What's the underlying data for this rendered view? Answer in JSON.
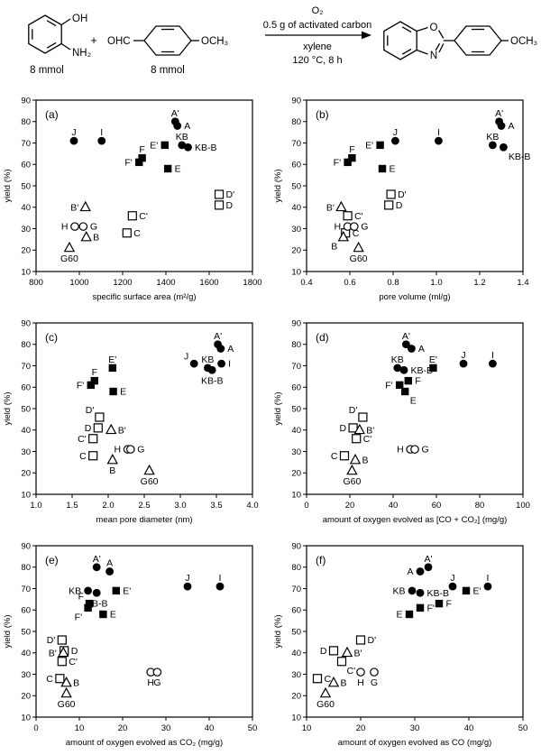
{
  "scheme": {
    "reactant1": {
      "oh": "OH",
      "nh2": "NH₂",
      "amount": "8 mmol"
    },
    "plus": "+",
    "reactant2": {
      "cho": "OHC",
      "och3": "OCH₃",
      "amount": "8 mmol"
    },
    "conditions": {
      "line1": "O₂",
      "line2": "0.5 g of activated carbon",
      "line3": "xylene",
      "line4": "120 °C, 8 h"
    },
    "product": {
      "o": "O",
      "n": "N",
      "och3": "OCH₃"
    }
  },
  "colors": {
    "ink": "#000000",
    "background": "#ffffff"
  },
  "markers": {
    "A": "filled-circle",
    "A'": "filled-circle",
    "I": "filled-circle",
    "J": "filled-circle",
    "KB": "filled-circle",
    "KB-B": "filled-circle",
    "E": "filled-square",
    "E'": "filled-square",
    "F": "filled-square",
    "F'": "filled-square",
    "C": "open-square",
    "C'": "open-square",
    "D": "open-square",
    "D'": "open-square",
    "G": "open-circle",
    "H": "open-circle",
    "B": "open-triangle",
    "B'": "open-triangle",
    "G60": "open-triangle"
  },
  "chart_data": [
    {
      "id": "(a)",
      "type": "scatter",
      "xlabel": "specific surface area (m²/g)",
      "ylabel": "yield (%)",
      "xlim": [
        800,
        1800
      ],
      "xticks": [
        "800",
        "1000",
        "1200",
        "1400",
        "1600",
        "1800"
      ],
      "ylim": [
        10,
        90
      ],
      "yticks": [
        "10",
        "20",
        "30",
        "40",
        "50",
        "60",
        "70",
        "80",
        "90"
      ],
      "points": [
        {
          "name": "A'",
          "x": 1443,
          "y": 80,
          "lp": "above"
        },
        {
          "name": "A",
          "x": 1453,
          "y": 78,
          "lp": "right"
        },
        {
          "name": "KB",
          "x": 1474,
          "y": 69,
          "lp": "above"
        },
        {
          "name": "KB-B",
          "x": 1502,
          "y": 68,
          "lp": "right"
        },
        {
          "name": "J",
          "x": 975,
          "y": 71,
          "lp": "above"
        },
        {
          "name": "I",
          "x": 1103,
          "y": 71,
          "lp": "above"
        },
        {
          "name": "E'",
          "x": 1395,
          "y": 69,
          "lp": "left"
        },
        {
          "name": "F",
          "x": 1290,
          "y": 63,
          "lp": "above"
        },
        {
          "name": "F'",
          "x": 1276,
          "y": 61,
          "lp": "left"
        },
        {
          "name": "E",
          "x": 1409,
          "y": 58,
          "lp": "right"
        },
        {
          "name": "D'",
          "x": 1646,
          "y": 46,
          "lp": "right"
        },
        {
          "name": "D",
          "x": 1646,
          "y": 41,
          "lp": "right"
        },
        {
          "name": "B'",
          "x": 1028,
          "y": 40,
          "lp": "left"
        },
        {
          "name": "C'",
          "x": 1245,
          "y": 36,
          "lp": "right"
        },
        {
          "name": "C",
          "x": 1220,
          "y": 28,
          "lp": "right"
        },
        {
          "name": "H",
          "x": 979,
          "y": 31,
          "lp": "left"
        },
        {
          "name": "G",
          "x": 1018,
          "y": 31,
          "lp": "right"
        },
        {
          "name": "B",
          "x": 1032,
          "y": 26,
          "lp": "right"
        },
        {
          "name": "G60",
          "x": 954,
          "y": 21,
          "lp": "below"
        }
      ]
    },
    {
      "id": "(b)",
      "type": "scatter",
      "xlabel": "pore volume (ml/g)",
      "ylabel": "yield (%)",
      "xlim": [
        0.4,
        1.4
      ],
      "xticks": [
        "0.4",
        "0.6",
        "0.8",
        "1.0",
        "1.2",
        "1.4"
      ],
      "ylim": [
        10,
        90
      ],
      "yticks": [
        "10",
        "20",
        "30",
        "40",
        "50",
        "60",
        "70",
        "80",
        "90"
      ],
      "points": [
        {
          "name": "A'",
          "x": 1.29,
          "y": 80,
          "lp": "above"
        },
        {
          "name": "A",
          "x": 1.3,
          "y": 78,
          "lp": "right"
        },
        {
          "name": "KB",
          "x": 1.26,
          "y": 69,
          "lp": "above"
        },
        {
          "name": "KB-B",
          "x": 1.31,
          "y": 68,
          "lp": "below-right"
        },
        {
          "name": "J",
          "x": 0.81,
          "y": 71,
          "lp": "above"
        },
        {
          "name": "I",
          "x": 1.01,
          "y": 71,
          "lp": "above"
        },
        {
          "name": "E'",
          "x": 0.74,
          "y": 69,
          "lp": "left"
        },
        {
          "name": "F",
          "x": 0.61,
          "y": 63,
          "lp": "above"
        },
        {
          "name": "F'",
          "x": 0.59,
          "y": 61,
          "lp": "left"
        },
        {
          "name": "E",
          "x": 0.75,
          "y": 58,
          "lp": "right"
        },
        {
          "name": "D'",
          "x": 0.79,
          "y": 46,
          "lp": "right"
        },
        {
          "name": "D",
          "x": 0.78,
          "y": 41,
          "lp": "right"
        },
        {
          "name": "B'",
          "x": 0.56,
          "y": 40,
          "lp": "left"
        },
        {
          "name": "C'",
          "x": 0.59,
          "y": 36,
          "lp": "right"
        },
        {
          "name": "C",
          "x": 0.58,
          "y": 28,
          "lp": "right"
        },
        {
          "name": "H",
          "x": 0.59,
          "y": 31,
          "lp": "left"
        },
        {
          "name": "G",
          "x": 0.62,
          "y": 31,
          "lp": "right"
        },
        {
          "name": "B",
          "x": 0.57,
          "y": 26,
          "lp": "below-left"
        },
        {
          "name": "G60",
          "x": 0.64,
          "y": 21,
          "lp": "below"
        }
      ]
    },
    {
      "id": "(c)",
      "type": "scatter",
      "xlabel": "mean pore diameter (nm)",
      "ylabel": "yield (%)",
      "xlim": [
        1.0,
        4.0
      ],
      "xticks": [
        "1.0",
        "1.5",
        "2.0",
        "2.5",
        "3.0",
        "3.5",
        "4.0"
      ],
      "ylim": [
        10,
        90
      ],
      "yticks": [
        "10",
        "20",
        "30",
        "40",
        "50",
        "60",
        "70",
        "80",
        "90"
      ],
      "points": [
        {
          "name": "A'",
          "x": 3.52,
          "y": 80,
          "lp": "above"
        },
        {
          "name": "A",
          "x": 3.56,
          "y": 78,
          "lp": "right"
        },
        {
          "name": "J",
          "x": 3.19,
          "y": 71,
          "lp": "above-left"
        },
        {
          "name": "KB",
          "x": 3.38,
          "y": 69,
          "lp": "above"
        },
        {
          "name": "KB-B",
          "x": 3.44,
          "y": 68,
          "lp": "below"
        },
        {
          "name": "I",
          "x": 3.57,
          "y": 71,
          "lp": "right"
        },
        {
          "name": "E'",
          "x": 2.06,
          "y": 69,
          "lp": "above"
        },
        {
          "name": "F",
          "x": 1.81,
          "y": 63,
          "lp": "above"
        },
        {
          "name": "F'",
          "x": 1.76,
          "y": 61,
          "lp": "left"
        },
        {
          "name": "E",
          "x": 2.07,
          "y": 58,
          "lp": "right"
        },
        {
          "name": "D'",
          "x": 1.88,
          "y": 46,
          "lp": "above-left"
        },
        {
          "name": "D",
          "x": 1.86,
          "y": 41,
          "lp": "left"
        },
        {
          "name": "B'",
          "x": 2.04,
          "y": 40,
          "lp": "right"
        },
        {
          "name": "C'",
          "x": 1.79,
          "y": 36,
          "lp": "left"
        },
        {
          "name": "C",
          "x": 1.79,
          "y": 28,
          "lp": "left"
        },
        {
          "name": "H",
          "x": 2.27,
          "y": 31,
          "lp": "left"
        },
        {
          "name": "G",
          "x": 2.31,
          "y": 31,
          "lp": "right"
        },
        {
          "name": "B",
          "x": 2.06,
          "y": 26,
          "lp": "below"
        },
        {
          "name": "G60",
          "x": 2.57,
          "y": 21,
          "lp": "below"
        }
      ]
    },
    {
      "id": "(d)",
      "type": "scatter",
      "xlabel": "amount of oxygen evolved as [CO + CO₂] (mg/g)",
      "ylabel": "yield (%)",
      "xlim": [
        0,
        100
      ],
      "xticks": [
        "0",
        "20",
        "40",
        "60",
        "80",
        "100"
      ],
      "ylim": [
        10,
        90
      ],
      "yticks": [
        "10",
        "20",
        "30",
        "40",
        "50",
        "60",
        "70",
        "80",
        "90"
      ],
      "points": [
        {
          "name": "A'",
          "x": 46,
          "y": 80,
          "lp": "above"
        },
        {
          "name": "A",
          "x": 48.5,
          "y": 78,
          "lp": "right"
        },
        {
          "name": "KB",
          "x": 42,
          "y": 69,
          "lp": "above"
        },
        {
          "name": "KB-B",
          "x": 45,
          "y": 68,
          "lp": "right"
        },
        {
          "name": "E'",
          "x": 58.5,
          "y": 69,
          "lp": "above"
        },
        {
          "name": "J",
          "x": 72.5,
          "y": 71,
          "lp": "above"
        },
        {
          "name": "I",
          "x": 86,
          "y": 71,
          "lp": "above"
        },
        {
          "name": "F'",
          "x": 43,
          "y": 61,
          "lp": "left"
        },
        {
          "name": "F",
          "x": 47,
          "y": 63,
          "lp": "right"
        },
        {
          "name": "E",
          "x": 45.5,
          "y": 58,
          "lp": "below-right"
        },
        {
          "name": "D'",
          "x": 26,
          "y": 46,
          "lp": "above-left"
        },
        {
          "name": "D",
          "x": 21.5,
          "y": 41,
          "lp": "left"
        },
        {
          "name": "B'",
          "x": 24.5,
          "y": 40,
          "lp": "right"
        },
        {
          "name": "C'",
          "x": 23,
          "y": 36,
          "lp": "right"
        },
        {
          "name": "C",
          "x": 17.5,
          "y": 28,
          "lp": "left"
        },
        {
          "name": "H",
          "x": 48,
          "y": 31,
          "lp": "left"
        },
        {
          "name": "G",
          "x": 50,
          "y": 31,
          "lp": "right"
        },
        {
          "name": "B",
          "x": 22.5,
          "y": 26,
          "lp": "right"
        },
        {
          "name": "G60",
          "x": 21,
          "y": 21,
          "lp": "below"
        }
      ]
    },
    {
      "id": "(e)",
      "type": "scatter",
      "xlabel": "amount of oxygen evolved as CO₂ (mg/g)",
      "ylabel": "yield (%)",
      "xlim": [
        0,
        50
      ],
      "xticks": [
        "0",
        "10",
        "20",
        "30",
        "40",
        "50"
      ],
      "ylim": [
        10,
        90
      ],
      "yticks": [
        "10",
        "20",
        "30",
        "40",
        "50",
        "60",
        "70",
        "80",
        "90"
      ],
      "points": [
        {
          "name": "A'",
          "x": 14,
          "y": 80,
          "lp": "above"
        },
        {
          "name": "A",
          "x": 17,
          "y": 78,
          "lp": "above"
        },
        {
          "name": "KB",
          "x": 12,
          "y": 69,
          "lp": "left"
        },
        {
          "name": "KB-B",
          "x": 14,
          "y": 68,
          "lp": "below"
        },
        {
          "name": "E'",
          "x": 18.5,
          "y": 69,
          "lp": "right"
        },
        {
          "name": "J",
          "x": 35,
          "y": 71,
          "lp": "above"
        },
        {
          "name": "I",
          "x": 42.5,
          "y": 71,
          "lp": "above"
        },
        {
          "name": "F",
          "x": 12.3,
          "y": 63,
          "lp": "above-left"
        },
        {
          "name": "F'",
          "x": 12,
          "y": 61,
          "lp": "below-left"
        },
        {
          "name": "E",
          "x": 15.5,
          "y": 58,
          "lp": "right"
        },
        {
          "name": "D'",
          "x": 6,
          "y": 46,
          "lp": "left"
        },
        {
          "name": "D",
          "x": 6.5,
          "y": 41,
          "lp": "right"
        },
        {
          "name": "B'",
          "x": 6.3,
          "y": 40,
          "lp": "left"
        },
        {
          "name": "C'",
          "x": 6,
          "y": 36,
          "lp": "right"
        },
        {
          "name": "C",
          "x": 5.5,
          "y": 28,
          "lp": "left"
        },
        {
          "name": "H",
          "x": 26.5,
          "y": 31,
          "lp": "below"
        },
        {
          "name": "G",
          "x": 28,
          "y": 31,
          "lp": "below"
        },
        {
          "name": "B",
          "x": 7,
          "y": 26,
          "lp": "right"
        },
        {
          "name": "G60",
          "x": 7,
          "y": 21,
          "lp": "below"
        }
      ]
    },
    {
      "id": "(f)",
      "type": "scatter",
      "xlabel": "amount of oxygen evolved as CO (mg/g)",
      "ylabel": "yield (%)",
      "xlim": [
        10,
        50
      ],
      "xticks": [
        "10",
        "20",
        "30",
        "40",
        "50"
      ],
      "ylim": [
        10,
        90
      ],
      "yticks": [
        "10",
        "20",
        "30",
        "40",
        "50",
        "60",
        "70",
        "80",
        "90"
      ],
      "points": [
        {
          "name": "A'",
          "x": 32.5,
          "y": 80,
          "lp": "above"
        },
        {
          "name": "A",
          "x": 31,
          "y": 78,
          "lp": "left"
        },
        {
          "name": "J",
          "x": 37,
          "y": 71,
          "lp": "above"
        },
        {
          "name": "I",
          "x": 43.5,
          "y": 71,
          "lp": "above"
        },
        {
          "name": "E'",
          "x": 39.5,
          "y": 69,
          "lp": "right"
        },
        {
          "name": "KB",
          "x": 29.5,
          "y": 69,
          "lp": "left"
        },
        {
          "name": "KB-B",
          "x": 31,
          "y": 68,
          "lp": "right"
        },
        {
          "name": "F",
          "x": 34.5,
          "y": 63,
          "lp": "right"
        },
        {
          "name": "F'",
          "x": 31,
          "y": 61,
          "lp": "right"
        },
        {
          "name": "E",
          "x": 29,
          "y": 58,
          "lp": "left"
        },
        {
          "name": "D'",
          "x": 20,
          "y": 46,
          "lp": "right"
        },
        {
          "name": "D",
          "x": 15,
          "y": 41,
          "lp": "left"
        },
        {
          "name": "B'",
          "x": 17.5,
          "y": 40,
          "lp": "right"
        },
        {
          "name": "C'",
          "x": 16.5,
          "y": 36,
          "lp": "below-right"
        },
        {
          "name": "H",
          "x": 20,
          "y": 31,
          "lp": "below"
        },
        {
          "name": "G",
          "x": 22.5,
          "y": 31,
          "lp": "below"
        },
        {
          "name": "C",
          "x": 12,
          "y": 28,
          "lp": "right"
        },
        {
          "name": "B",
          "x": 15,
          "y": 26,
          "lp": "right"
        },
        {
          "name": "G60",
          "x": 13.5,
          "y": 21,
          "lp": "below"
        }
      ]
    }
  ]
}
